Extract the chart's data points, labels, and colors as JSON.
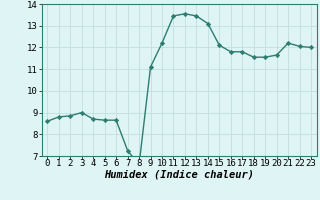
{
  "x": [
    0,
    1,
    2,
    3,
    4,
    5,
    6,
    7,
    8,
    9,
    10,
    11,
    12,
    13,
    14,
    15,
    16,
    17,
    18,
    19,
    20,
    21,
    22,
    23
  ],
  "y": [
    8.6,
    8.8,
    8.85,
    9.0,
    8.7,
    8.65,
    8.65,
    7.25,
    6.6,
    11.1,
    12.2,
    13.45,
    13.55,
    13.45,
    13.1,
    12.1,
    11.8,
    11.8,
    11.55,
    11.55,
    11.65,
    12.2,
    12.05,
    12.0
  ],
  "line_color": "#2d7d70",
  "marker": "D",
  "marker_size": 2.2,
  "bg_color": "#dff4f4",
  "grid_color": "#c0dede",
  "xlabel": "Humidex (Indice chaleur)",
  "ylim": [
    7,
    14
  ],
  "xlim": [
    -0.5,
    23.5
  ],
  "yticks": [
    7,
    8,
    9,
    10,
    11,
    12,
    13,
    14
  ],
  "xticks": [
    0,
    1,
    2,
    3,
    4,
    5,
    6,
    7,
    8,
    9,
    10,
    11,
    12,
    13,
    14,
    15,
    16,
    17,
    18,
    19,
    20,
    21,
    22,
    23
  ],
  "xlabel_fontsize": 7.5,
  "tick_fontsize": 6.5,
  "line_width": 1.0,
  "fig_width": 3.2,
  "fig_height": 2.0,
  "dpi": 100
}
